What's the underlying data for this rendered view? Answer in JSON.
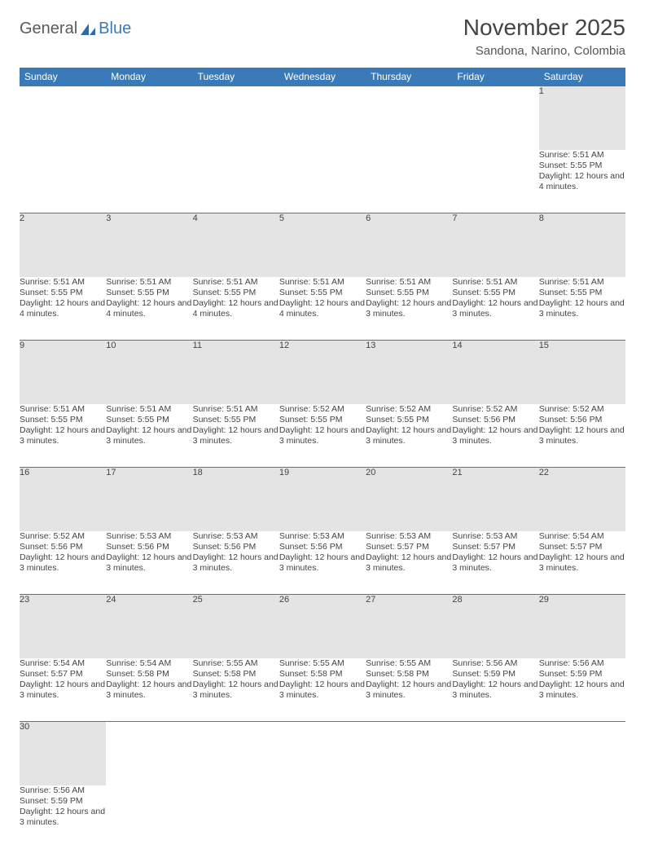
{
  "logo": {
    "text1": "General",
    "text2": "Blue"
  },
  "title": "November 2025",
  "location": "Sandona, Narino, Colombia",
  "colors": {
    "header_bg": "#3a7ab8",
    "header_fg": "#ffffff",
    "daynum_bg": "#e4e4e4",
    "row_border": "#3a7ab8",
    "page_bg": "#ffffff",
    "text": "#444444"
  },
  "weekdays": [
    "Sunday",
    "Monday",
    "Tuesday",
    "Wednesday",
    "Thursday",
    "Friday",
    "Saturday"
  ],
  "weeks": [
    {
      "nums": [
        "",
        "",
        "",
        "",
        "",
        "",
        "1"
      ],
      "cells": [
        null,
        null,
        null,
        null,
        null,
        null,
        {
          "sr": "5:51 AM",
          "ss": "5:55 PM",
          "dl": "12 hours and 4 minutes."
        }
      ]
    },
    {
      "nums": [
        "2",
        "3",
        "4",
        "5",
        "6",
        "7",
        "8"
      ],
      "cells": [
        {
          "sr": "5:51 AM",
          "ss": "5:55 PM",
          "dl": "12 hours and 4 minutes."
        },
        {
          "sr": "5:51 AM",
          "ss": "5:55 PM",
          "dl": "12 hours and 4 minutes."
        },
        {
          "sr": "5:51 AM",
          "ss": "5:55 PM",
          "dl": "12 hours and 4 minutes."
        },
        {
          "sr": "5:51 AM",
          "ss": "5:55 PM",
          "dl": "12 hours and 4 minutes."
        },
        {
          "sr": "5:51 AM",
          "ss": "5:55 PM",
          "dl": "12 hours and 3 minutes."
        },
        {
          "sr": "5:51 AM",
          "ss": "5:55 PM",
          "dl": "12 hours and 3 minutes."
        },
        {
          "sr": "5:51 AM",
          "ss": "5:55 PM",
          "dl": "12 hours and 3 minutes."
        }
      ]
    },
    {
      "nums": [
        "9",
        "10",
        "11",
        "12",
        "13",
        "14",
        "15"
      ],
      "cells": [
        {
          "sr": "5:51 AM",
          "ss": "5:55 PM",
          "dl": "12 hours and 3 minutes."
        },
        {
          "sr": "5:51 AM",
          "ss": "5:55 PM",
          "dl": "12 hours and 3 minutes."
        },
        {
          "sr": "5:51 AM",
          "ss": "5:55 PM",
          "dl": "12 hours and 3 minutes."
        },
        {
          "sr": "5:52 AM",
          "ss": "5:55 PM",
          "dl": "12 hours and 3 minutes."
        },
        {
          "sr": "5:52 AM",
          "ss": "5:55 PM",
          "dl": "12 hours and 3 minutes."
        },
        {
          "sr": "5:52 AM",
          "ss": "5:56 PM",
          "dl": "12 hours and 3 minutes."
        },
        {
          "sr": "5:52 AM",
          "ss": "5:56 PM",
          "dl": "12 hours and 3 minutes."
        }
      ]
    },
    {
      "nums": [
        "16",
        "17",
        "18",
        "19",
        "20",
        "21",
        "22"
      ],
      "cells": [
        {
          "sr": "5:52 AM",
          "ss": "5:56 PM",
          "dl": "12 hours and 3 minutes."
        },
        {
          "sr": "5:53 AM",
          "ss": "5:56 PM",
          "dl": "12 hours and 3 minutes."
        },
        {
          "sr": "5:53 AM",
          "ss": "5:56 PM",
          "dl": "12 hours and 3 minutes."
        },
        {
          "sr": "5:53 AM",
          "ss": "5:56 PM",
          "dl": "12 hours and 3 minutes."
        },
        {
          "sr": "5:53 AM",
          "ss": "5:57 PM",
          "dl": "12 hours and 3 minutes."
        },
        {
          "sr": "5:53 AM",
          "ss": "5:57 PM",
          "dl": "12 hours and 3 minutes."
        },
        {
          "sr": "5:54 AM",
          "ss": "5:57 PM",
          "dl": "12 hours and 3 minutes."
        }
      ]
    },
    {
      "nums": [
        "23",
        "24",
        "25",
        "26",
        "27",
        "28",
        "29"
      ],
      "cells": [
        {
          "sr": "5:54 AM",
          "ss": "5:57 PM",
          "dl": "12 hours and 3 minutes."
        },
        {
          "sr": "5:54 AM",
          "ss": "5:58 PM",
          "dl": "12 hours and 3 minutes."
        },
        {
          "sr": "5:55 AM",
          "ss": "5:58 PM",
          "dl": "12 hours and 3 minutes."
        },
        {
          "sr": "5:55 AM",
          "ss": "5:58 PM",
          "dl": "12 hours and 3 minutes."
        },
        {
          "sr": "5:55 AM",
          "ss": "5:58 PM",
          "dl": "12 hours and 3 minutes."
        },
        {
          "sr": "5:56 AM",
          "ss": "5:59 PM",
          "dl": "12 hours and 3 minutes."
        },
        {
          "sr": "5:56 AM",
          "ss": "5:59 PM",
          "dl": "12 hours and 3 minutes."
        }
      ]
    },
    {
      "nums": [
        "30",
        "",
        "",
        "",
        "",
        "",
        ""
      ],
      "cells": [
        {
          "sr": "5:56 AM",
          "ss": "5:59 PM",
          "dl": "12 hours and 3 minutes."
        },
        null,
        null,
        null,
        null,
        null,
        null
      ]
    }
  ],
  "labels": {
    "sunrise": "Sunrise: ",
    "sunset": "Sunset: ",
    "daylight": "Daylight: "
  }
}
